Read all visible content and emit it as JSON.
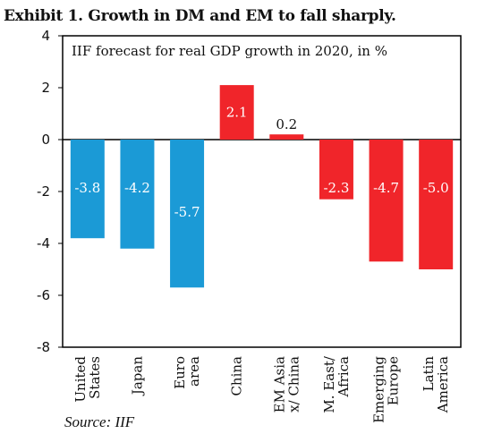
{
  "title": "Exhibit 1. Growth in DM and EM to fall sharply.",
  "source": "Source: IIF",
  "colors": {
    "dm": "#1B9AD6",
    "em": "#F0252A",
    "axis": "#000000"
  },
  "chart_data": {
    "type": "bar",
    "subtitle": "IIF forecast for real GDP growth in 2020, in %",
    "categories": [
      [
        "United",
        "States"
      ],
      [
        "Japan"
      ],
      [
        "Euro",
        "area"
      ],
      [
        "China"
      ],
      [
        "EM Asia",
        "x/ China"
      ],
      [
        "M. East/",
        "Africa"
      ],
      [
        "Emerging",
        "Europe"
      ],
      [
        "Latin",
        "America"
      ]
    ],
    "values": [
      -3.8,
      -4.2,
      -5.7,
      2.1,
      0.2,
      -2.3,
      -4.7,
      -5.0
    ],
    "labels": [
      "-3.8",
      "-4.2",
      "-5.7",
      "2.1",
      "0.2",
      "-2.3",
      "-4.7",
      "-5.0"
    ],
    "groups": [
      "dm",
      "dm",
      "dm",
      "em",
      "em",
      "em",
      "em",
      "em"
    ],
    "ylim": [
      -8,
      4
    ],
    "yticks": [
      4,
      2,
      0,
      -2,
      -4,
      -6,
      -8
    ],
    "legend": "none",
    "grid": false
  }
}
